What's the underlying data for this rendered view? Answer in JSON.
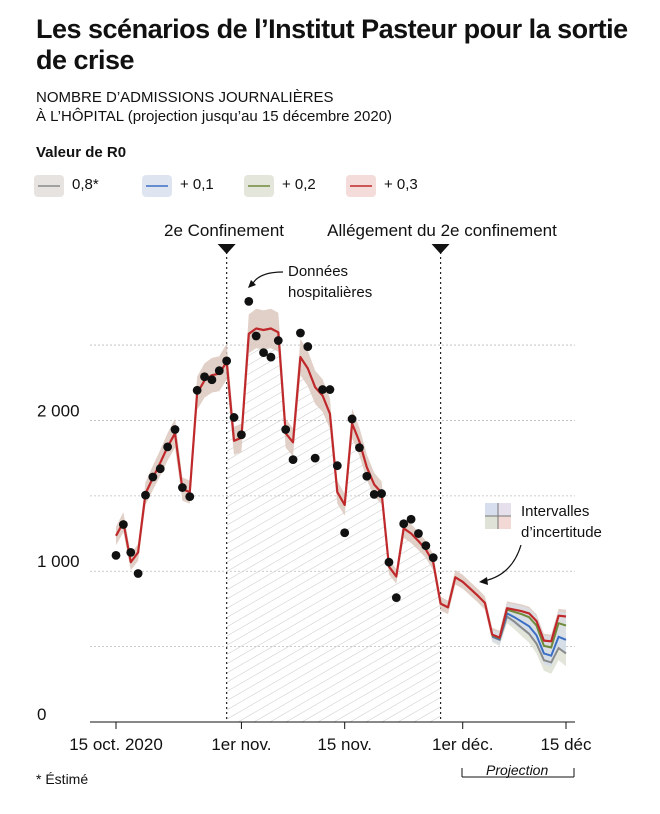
{
  "header": {
    "title": "Les scénarios de l’Institut Pasteur pour la sortie de crise",
    "subtitle_line1": "NOMBRE D’ADMISSIONS JOURNALIÈRES",
    "subtitle_line2": "À L’HÔPITAL (projection jusqu’au 15 décembre 2020)"
  },
  "legend": {
    "title": "Valeur de R0",
    "items": [
      {
        "label": "0,8*",
        "color": "#8a8a8a"
      },
      {
        "label": "+ 0,1",
        "color": "#3b6fc4"
      },
      {
        "label": "+ 0,2",
        "color": "#6e8a3a"
      },
      {
        "label": "+ 0,3",
        "color": "#c0292b"
      }
    ]
  },
  "annotations": {
    "confinement": "2e Confinement",
    "allegement": "Allégement du 2e confinement",
    "donnees_line1": "Données",
    "donnees_line2": "hospitalières",
    "intervalles_line1": "Intervalles",
    "intervalles_line2": "d’incertitude"
  },
  "footnote": "* Éstimé",
  "projection_label": "Projection",
  "colors": {
    "band": "#dcc8bd",
    "hatch": "#c9c9c9",
    "dot": "#111111",
    "grid": "#bbbbbb"
  },
  "chart_data": {
    "type": "line",
    "title": "Les scénarios de l’Institut Pasteur pour la sortie de crise",
    "ylabel": "",
    "ylim": [
      0,
      2600
    ],
    "xlim": [
      "2020-10-15",
      "2020-12-15"
    ],
    "y_ticks": [
      0,
      1000,
      2000
    ],
    "y_tick_labels": [
      "0",
      "1 000",
      "2 000"
    ],
    "x_ticks": [
      "2020-10-15",
      "2020-11-01",
      "2020-11-15",
      "2020-12-01",
      "2020-12-15"
    ],
    "x_tick_labels": [
      "15 oct. 2020",
      "1er nov.",
      "15 nov.",
      "1er déc.",
      "15 déc"
    ],
    "grid": true,
    "events": [
      {
        "date": "2020-10-30",
        "label": "2e Confinement"
      },
      {
        "date": "2020-11-28",
        "label": "Allégement du 2e confinement"
      }
    ],
    "observed": {
      "name": "Données hospitalières",
      "x": [
        "2020-10-15",
        "2020-10-16",
        "2020-10-17",
        "2020-10-18",
        "2020-10-19",
        "2020-10-20",
        "2020-10-21",
        "2020-10-22",
        "2020-10-23",
        "2020-10-24",
        "2020-10-25",
        "2020-10-26",
        "2020-10-27",
        "2020-10-28",
        "2020-10-29",
        "2020-10-30",
        "2020-10-31",
        "2020-11-01",
        "2020-11-02",
        "2020-11-03",
        "2020-11-04",
        "2020-11-05",
        "2020-11-06",
        "2020-11-07",
        "2020-11-08",
        "2020-11-09",
        "2020-11-10",
        "2020-11-11",
        "2020-11-12",
        "2020-11-13",
        "2020-11-14",
        "2020-11-15",
        "2020-11-16",
        "2020-11-17",
        "2020-11-18",
        "2020-11-19",
        "2020-11-20",
        "2020-11-21",
        "2020-11-22",
        "2020-11-23",
        "2020-11-24",
        "2020-11-25",
        "2020-11-26",
        "2020-11-27"
      ],
      "y": [
        1105,
        1310,
        1125,
        985,
        1505,
        1625,
        1680,
        1825,
        1940,
        1555,
        1495,
        2200,
        2290,
        2270,
        2330,
        2395,
        2020,
        1905,
        2790,
        2560,
        2450,
        2420,
        2530,
        1940,
        1740,
        2580,
        2490,
        1750,
        2205,
        2205,
        1700,
        1255,
        2010,
        1820,
        1630,
        1510,
        1515,
        1060,
        825,
        1315,
        1345,
        1250,
        1170,
        1090
      ]
    },
    "series": [
      {
        "name": "+ 0,3",
        "color": "#c0292b",
        "x": [
          "2020-10-15",
          "2020-10-16",
          "2020-10-17",
          "2020-10-18",
          "2020-10-19",
          "2020-10-20",
          "2020-10-21",
          "2020-10-22",
          "2020-10-23",
          "2020-10-24",
          "2020-10-25",
          "2020-10-26",
          "2020-10-27",
          "2020-10-28",
          "2020-10-29",
          "2020-10-30",
          "2020-10-31",
          "2020-11-01",
          "2020-11-02",
          "2020-11-03",
          "2020-11-04",
          "2020-11-05",
          "2020-11-06",
          "2020-11-07",
          "2020-11-08",
          "2020-11-09",
          "2020-11-10",
          "2020-11-11",
          "2020-11-12",
          "2020-11-13",
          "2020-11-14",
          "2020-11-15",
          "2020-11-16",
          "2020-11-17",
          "2020-11-18",
          "2020-11-19",
          "2020-11-20",
          "2020-11-21",
          "2020-11-22",
          "2020-11-23",
          "2020-11-24",
          "2020-11-25",
          "2020-11-26",
          "2020-11-27",
          "2020-11-28",
          "2020-11-29",
          "2020-11-30",
          "2020-12-01",
          "2020-12-02",
          "2020-12-03",
          "2020-12-04",
          "2020-12-05",
          "2020-12-06",
          "2020-12-07",
          "2020-12-08",
          "2020-12-09",
          "2020-12-10",
          "2020-12-11",
          "2020-12-12",
          "2020-12-13",
          "2020-12-14",
          "2020-12-15"
        ],
        "y": [
          1235,
          1325,
          1060,
          1125,
          1515,
          1620,
          1720,
          1825,
          1915,
          1545,
          1525,
          2180,
          2265,
          2300,
          2310,
          2390,
          1865,
          1885,
          2575,
          2610,
          2600,
          2610,
          2585,
          1915,
          1855,
          2420,
          2345,
          2220,
          2165,
          2045,
          1525,
          1440,
          1980,
          1860,
          1690,
          1575,
          1520,
          1030,
          965,
          1285,
          1250,
          1200,
          1145,
          1060,
          785,
          760,
          960,
          930,
          885,
          840,
          790,
          580,
          560,
          755,
          745,
          735,
          720,
          670,
          540,
          535,
          705,
          700
        ]
      },
      {
        "name": "+ 0,2",
        "color": "#6e8a3a",
        "x": [
          "2020-12-05",
          "2020-12-06",
          "2020-12-07",
          "2020-12-08",
          "2020-12-09",
          "2020-12-10",
          "2020-12-11",
          "2020-12-12",
          "2020-12-13",
          "2020-12-14",
          "2020-12-15"
        ],
        "y": [
          575,
          555,
          745,
          730,
          715,
          695,
          640,
          505,
          495,
          655,
          640
        ]
      },
      {
        "name": "+ 0,1",
        "color": "#3b6fc4",
        "x": [
          "2020-12-05",
          "2020-12-06",
          "2020-12-07",
          "2020-12-08",
          "2020-12-09",
          "2020-12-10",
          "2020-12-11",
          "2020-12-12",
          "2020-12-13",
          "2020-12-14",
          "2020-12-15"
        ],
        "y": [
          570,
          550,
          720,
          695,
          665,
          635,
          575,
          455,
          440,
          565,
          545
        ]
      },
      {
        "name": "0,8*",
        "color": "#8a8a8a",
        "x": [
          "2020-12-05",
          "2020-12-06",
          "2020-12-07",
          "2020-12-08",
          "2020-12-09",
          "2020-12-10",
          "2020-12-11",
          "2020-12-12",
          "2020-12-13",
          "2020-12-14",
          "2020-12-15"
        ],
        "y": [
          565,
          545,
          700,
          665,
          625,
          585,
          520,
          410,
          395,
          490,
          455
        ]
      }
    ]
  }
}
